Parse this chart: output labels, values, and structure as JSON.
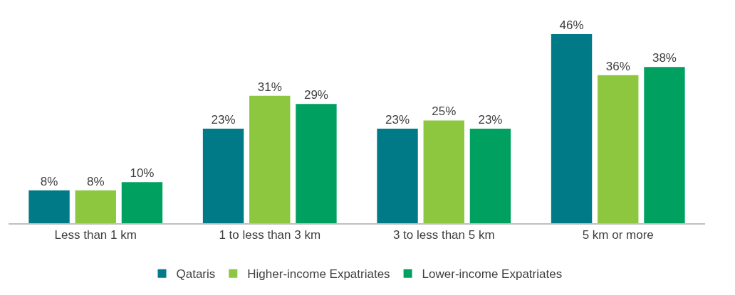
{
  "chart_data": {
    "type": "bar",
    "categories": [
      "Less than 1 km",
      "1 to less than 3 km",
      "3 to less than 5 km",
      "5 km or more"
    ],
    "series": [
      {
        "name": "Qataris",
        "color": "#007a87",
        "values": [
          8,
          23,
          23,
          46
        ],
        "value_labels": [
          "8%",
          "23%",
          "23%",
          "46%"
        ]
      },
      {
        "name": "Higher-income Expatriates",
        "color": "#8dc63f",
        "values": [
          8,
          31,
          25,
          36
        ],
        "value_labels": [
          "8%",
          "31%",
          "25%",
          "36%"
        ]
      },
      {
        "name": "Lower-income Expatriates",
        "color": "#00a160",
        "values": [
          10,
          29,
          23,
          38
        ],
        "value_labels": [
          "10%",
          "29%",
          "23%",
          "38%"
        ]
      }
    ],
    "legend": "bottom",
    "tick_labels": "x"
  }
}
